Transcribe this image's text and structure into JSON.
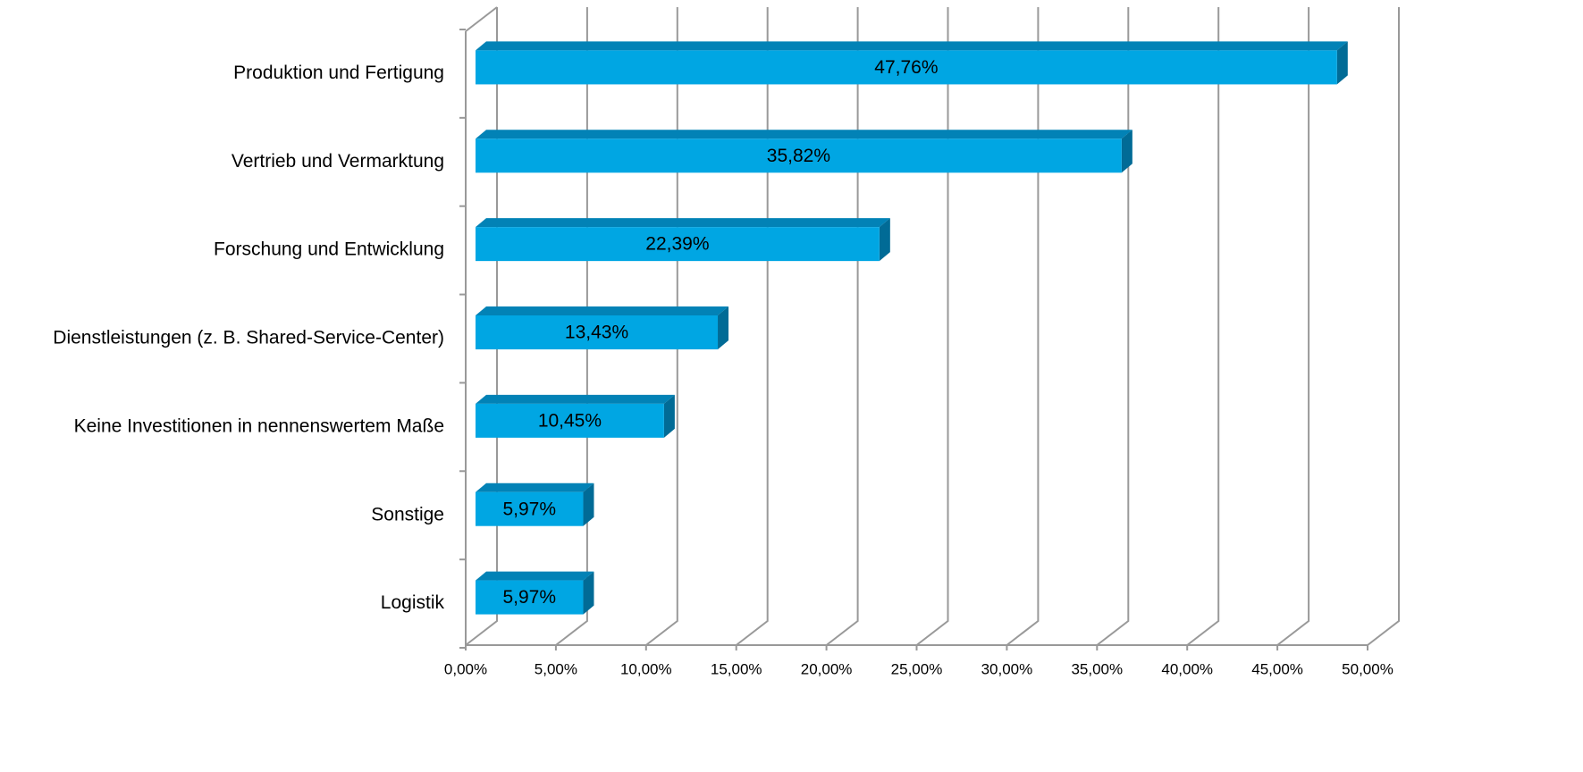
{
  "chart_data": {
    "type": "bar3d_horizontal",
    "categories": [
      "Produktion und Fertigung",
      "Vertrieb und Vermarktung",
      "Forschung und Entwicklung",
      "Dienstleistungen (z. B. Shared-Service-Center)",
      "Keine Investitionen in nennenswertem Maße",
      "Sonstige",
      "Logistik"
    ],
    "values": [
      47.76,
      35.82,
      22.39,
      13.43,
      10.45,
      5.97,
      5.97
    ],
    "value_labels": [
      "47,76%",
      "35,82%",
      "22,39%",
      "13,43%",
      "10,45%",
      "5,97%",
      "5,97%"
    ],
    "color": "#00a6e3",
    "xlim": [
      0,
      50
    ],
    "xticks": [
      {
        "value": 0,
        "label": "0,00%"
      },
      {
        "value": 5,
        "label": "5,00%"
      },
      {
        "value": 10,
        "label": "10,00%"
      },
      {
        "value": 15,
        "label": "15,00%"
      },
      {
        "value": 20,
        "label": "20,00%"
      },
      {
        "value": 25,
        "label": "25,00%"
      },
      {
        "value": 30,
        "label": "30,00%"
      },
      {
        "value": 35,
        "label": "35,00%"
      },
      {
        "value": 40,
        "label": "40,00%"
      },
      {
        "value": 45,
        "label": "45,00%"
      },
      {
        "value": 50,
        "label": "50,00%"
      }
    ],
    "grid": true
  }
}
